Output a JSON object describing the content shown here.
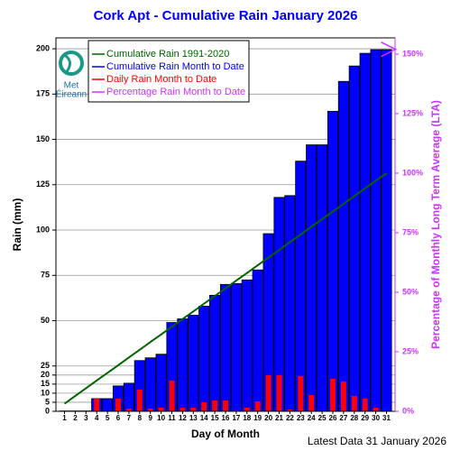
{
  "chart_data": {
    "type": "bar",
    "title": "Cork Apt - Cumulative Rain January   2026",
    "x_label": "Day of Month",
    "y_label": "Rain (mm)",
    "y2_label": "Percentage  of Monthly Long Term Average (LTA)",
    "footer": "Latest Data 31 January 2026",
    "logo": [
      "Met",
      "Éireann"
    ],
    "x": [
      1,
      2,
      3,
      4,
      5,
      6,
      7,
      8,
      9,
      10,
      11,
      12,
      13,
      14,
      15,
      16,
      17,
      18,
      19,
      20,
      21,
      22,
      23,
      24,
      25,
      26,
      27,
      28,
      29,
      30,
      31
    ],
    "xlim": [
      0.2,
      31.8
    ],
    "ylim": [
      0,
      206
    ],
    "yticks": [
      0,
      5,
      10,
      15,
      20,
      25,
      50,
      75,
      100,
      125,
      150,
      175,
      200
    ],
    "y2lim": [
      0,
      156.8
    ],
    "y2ticks": [
      {
        "value": 0,
        "label": "0%"
      },
      {
        "value": 25,
        "label": "25%"
      },
      {
        "value": 50,
        "label": "50%"
      },
      {
        "value": 75,
        "label": "75%"
      },
      {
        "value": 100,
        "label": "100%"
      },
      {
        "value": 125,
        "label": "125%"
      },
      {
        "value": 150,
        "label": "150%"
      }
    ],
    "grid": true,
    "legend": "top-left",
    "series": [
      {
        "name": "Cumulative Rain 1991-2020",
        "type": "line",
        "color": "#006400",
        "values": [
          4.2,
          8.5,
          12.7,
          17,
          21.2,
          25.4,
          29.7,
          33.9,
          38.2,
          42.4,
          46.6,
          50.9,
          55.1,
          59.4,
          63.6,
          67.8,
          72.1,
          76.3,
          80.6,
          84.8,
          89,
          93.3,
          97.5,
          101.8,
          106,
          110.2,
          114.5,
          118.7,
          123,
          127.2,
          131.3
        ]
      },
      {
        "name": "Cumulative Rain Month to Date",
        "type": "bar",
        "color": "#0000ff",
        "values": [
          0.2,
          0.2,
          0.2,
          7,
          7,
          14,
          15.5,
          28,
          29.5,
          31.5,
          49,
          51,
          53,
          58,
          64,
          70,
          70.5,
          72.5,
          78,
          98,
          118,
          119,
          138,
          147,
          147,
          165.5,
          182,
          190.5,
          197.5,
          199.5,
          199.5
        ]
      },
      {
        "name": "Daily Rain Month to Date",
        "type": "bar",
        "color": "#ff0000",
        "values": [
          0.2,
          0,
          0,
          7,
          0.2,
          7,
          1.5,
          12,
          1.5,
          2,
          17,
          2,
          2,
          5,
          6,
          6,
          0.5,
          2,
          5.5,
          20,
          20,
          1,
          19.5,
          9,
          0.2,
          18,
          16.5,
          8.5,
          7,
          2,
          0.2
        ]
      },
      {
        "name": "Percentage Rain Month to Date",
        "type": "line",
        "axis": "y2",
        "color": "#cc33ff",
        "values": [
          null,
          null,
          null,
          null,
          null,
          null,
          null,
          null,
          null,
          null,
          null,
          null,
          null,
          null,
          null,
          null,
          null,
          null,
          null,
          null,
          null,
          null,
          null,
          null,
          null,
          null,
          null,
          null,
          null,
          null,
          152
        ]
      }
    ]
  }
}
